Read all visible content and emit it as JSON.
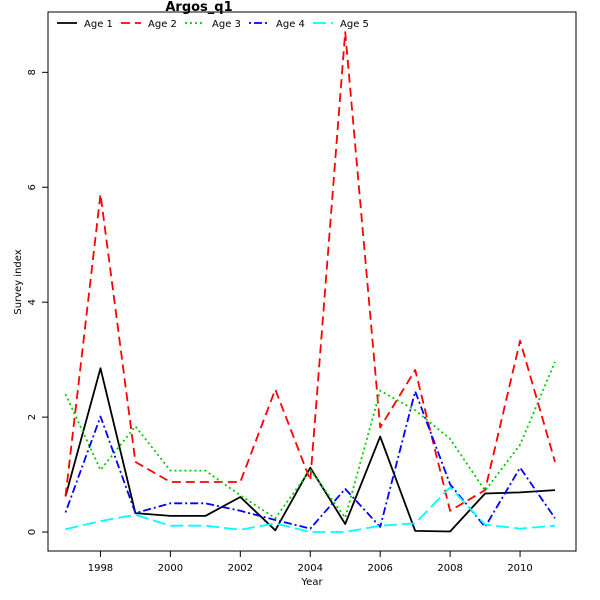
{
  "chart_data": {
    "type": "line",
    "title": "Argos_q1",
    "xlabel": "Year",
    "ylabel": "Survey index",
    "x": [
      1997,
      1998,
      1999,
      2000,
      2001,
      2002,
      2003,
      2004,
      2005,
      2006,
      2007,
      2008,
      2009,
      2010,
      2011
    ],
    "xlim": [
      1996.5,
      2011.6
    ],
    "ylim": [
      -0.33,
      9.05
    ],
    "x_ticks": [
      1998,
      2000,
      2002,
      2004,
      2006,
      2008,
      2010
    ],
    "y_ticks": [
      0,
      2,
      4,
      6,
      8
    ],
    "grid": false,
    "legend_position": "top",
    "series": [
      {
        "name": "Age 1",
        "color": "#000000",
        "dash": "solid",
        "values": [
          0.62,
          2.85,
          0.33,
          0.28,
          0.28,
          0.61,
          0.03,
          1.12,
          0.14,
          1.66,
          0.02,
          0.01,
          0.67,
          0.69,
          0.73
        ]
      },
      {
        "name": "Age 2",
        "color": "#ff0000",
        "dash": "dashed",
        "values": [
          0.62,
          5.88,
          1.22,
          0.87,
          0.87,
          0.87,
          2.48,
          0.9,
          8.7,
          1.82,
          2.82,
          0.37,
          0.73,
          3.33,
          1.22
        ]
      },
      {
        "name": "Age 3",
        "color": "#00cd00",
        "dash": "dotted",
        "values": [
          2.4,
          1.08,
          1.84,
          1.07,
          1.07,
          0.64,
          0.24,
          1.08,
          0.25,
          2.46,
          2.12,
          1.62,
          0.72,
          1.52,
          2.96
        ]
      },
      {
        "name": "Age 4",
        "color": "#0000ff",
        "dash": "dotdash",
        "values": [
          0.34,
          2.01,
          0.33,
          0.5,
          0.5,
          0.37,
          0.21,
          0.06,
          0.75,
          0.09,
          2.45,
          0.83,
          0.09,
          1.12,
          0.24
        ]
      },
      {
        "name": "Age 5",
        "color": "#00ffff",
        "dash": "longdash",
        "values": [
          0.05,
          0.19,
          0.3,
          0.11,
          0.11,
          0.04,
          0.15,
          0.0,
          0.0,
          0.11,
          0.15,
          0.78,
          0.13,
          0.06,
          0.11
        ]
      }
    ]
  }
}
